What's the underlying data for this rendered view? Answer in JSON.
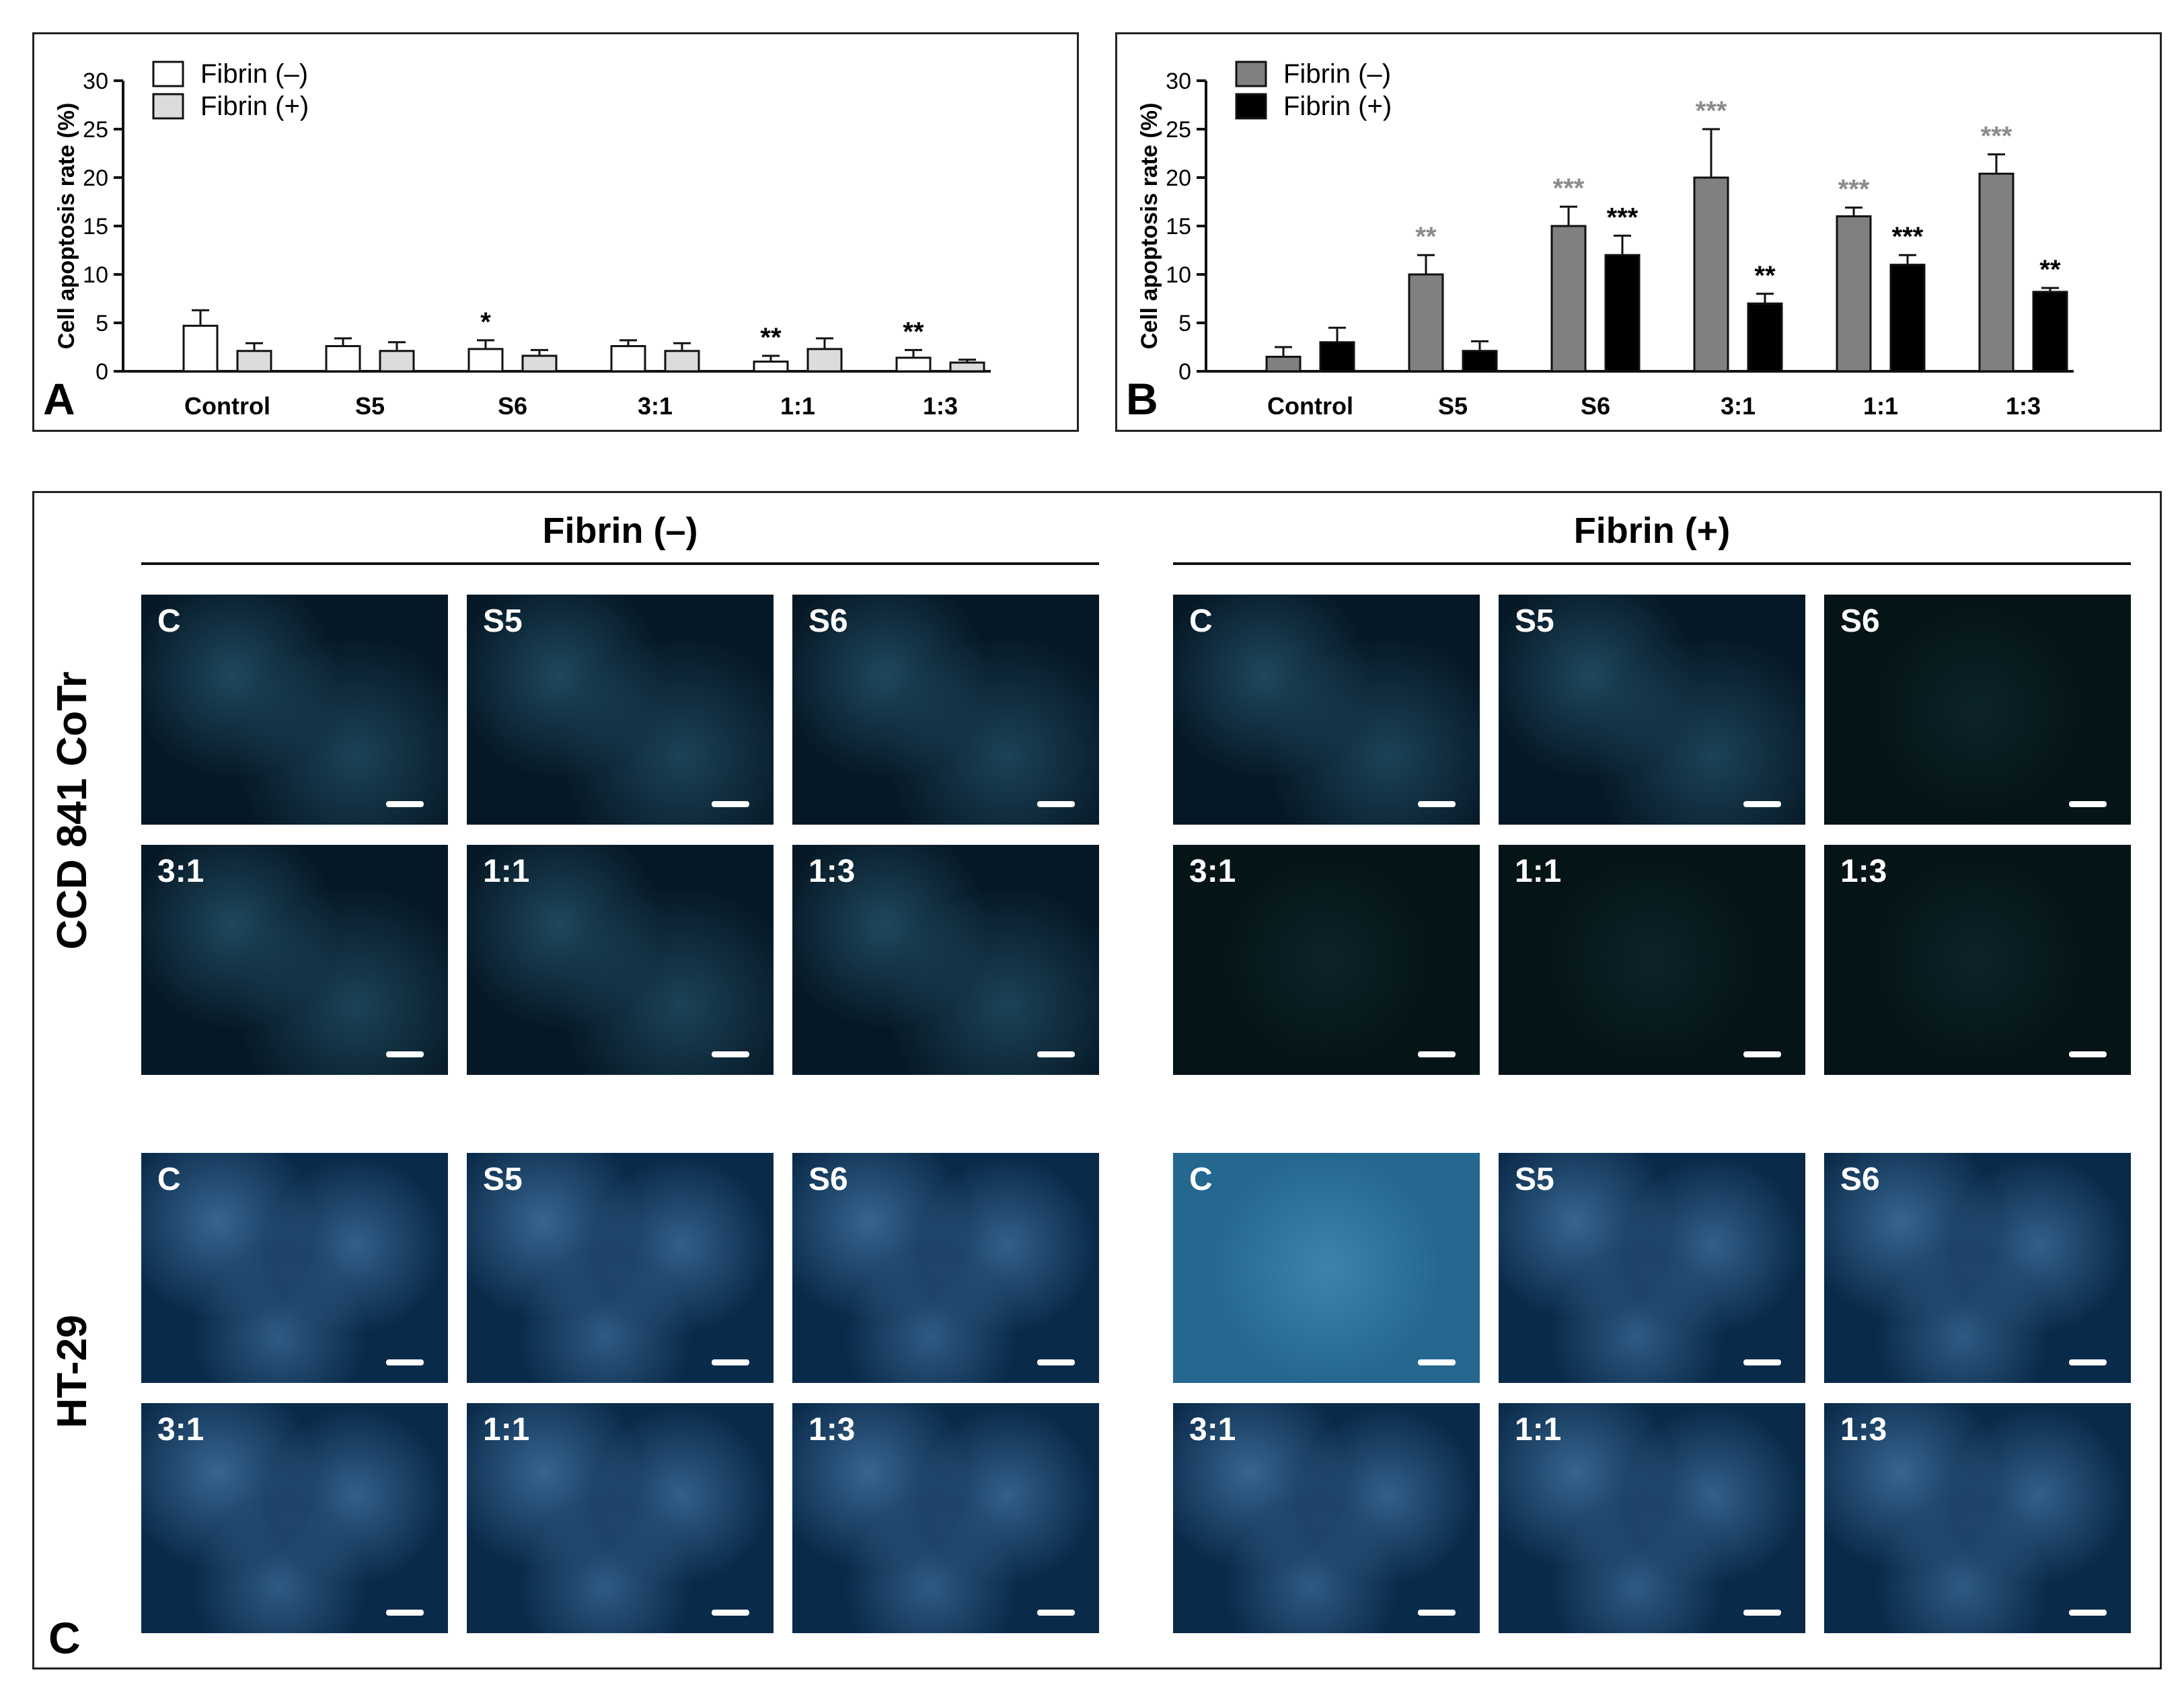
{
  "chart_data": [
    {
      "type": "bar",
      "panel": "A",
      "ylabel": "Cell apoptosis rate (%)",
      "ylim": [
        0,
        30
      ],
      "yticks": [
        0,
        5,
        10,
        15,
        20,
        25,
        30
      ],
      "categories": [
        "Control",
        "S5",
        "S6",
        "3:1",
        "1:1",
        "1:3"
      ],
      "series": [
        {
          "name": "Fibrin (–)",
          "color": "#ffffff",
          "values": [
            4.7,
            2.6,
            2.3,
            2.6,
            1.0,
            1.4
          ],
          "errors": [
            1.6,
            0.8,
            0.9,
            0.6,
            0.6,
            0.8
          ]
        },
        {
          "name": "Fibrin (+)",
          "color": "#dcdcdc",
          "values": [
            2.1,
            2.1,
            1.6,
            2.1,
            2.3,
            0.9
          ],
          "errors": [
            0.8,
            0.9,
            0.6,
            0.8,
            1.1,
            0.3
          ]
        }
      ],
      "annotations": [
        {
          "category": "S6",
          "series": 0,
          "text": "*",
          "color": "#000000"
        },
        {
          "category": "1:1",
          "series": 0,
          "text": "**",
          "color": "#000000"
        },
        {
          "category": "1:3",
          "series": 0,
          "text": "**",
          "color": "#000000"
        }
      ]
    },
    {
      "type": "bar",
      "panel": "B",
      "ylabel": "Cell apoptosis rate (%)",
      "ylim": [
        0,
        30
      ],
      "yticks": [
        0,
        5,
        10,
        15,
        20,
        25,
        30
      ],
      "categories": [
        "Control",
        "S5",
        "S6",
        "3:1",
        "1:1",
        "1:3"
      ],
      "series": [
        {
          "name": "Fibrin (–)",
          "color": "#808080",
          "values": [
            1.5,
            10.0,
            15.0,
            20.0,
            16.0,
            20.4
          ],
          "errors": [
            1.0,
            2.0,
            2.0,
            5.0,
            0.9,
            2.0
          ]
        },
        {
          "name": "Fibrin (+)",
          "color": "#000000",
          "values": [
            3.0,
            2.1,
            12.0,
            7.0,
            11.0,
            8.2
          ],
          "errors": [
            1.5,
            1.0,
            2.0,
            1.0,
            1.0,
            0.4
          ]
        }
      ],
      "annotations": [
        {
          "category": "S5",
          "series": 0,
          "text": "**",
          "color": "#8c8c8c"
        },
        {
          "category": "S6",
          "series": 0,
          "text": "***",
          "color": "#8c8c8c"
        },
        {
          "category": "S6",
          "series": 1,
          "text": "***",
          "color": "#000000"
        },
        {
          "category": "3:1",
          "series": 0,
          "text": "***",
          "color": "#8c8c8c"
        },
        {
          "category": "3:1",
          "series": 1,
          "text": "**",
          "color": "#000000"
        },
        {
          "category": "1:1",
          "series": 0,
          "text": "***",
          "color": "#8c8c8c"
        },
        {
          "category": "1:1",
          "series": 1,
          "text": "***",
          "color": "#000000"
        },
        {
          "category": "1:3",
          "series": 0,
          "text": "***",
          "color": "#8c8c8c"
        },
        {
          "category": "1:3",
          "series": 1,
          "text": "**",
          "color": "#000000"
        }
      ]
    }
  ],
  "panel_c": {
    "letter": "C",
    "column_headers": [
      "Fibrin (–)",
      "Fibrin (+)"
    ],
    "row_labels": [
      "CCD 841 CoTr",
      "HT-29"
    ],
    "image_labels": [
      "C",
      "S5",
      "S6",
      "3:1",
      "1:1",
      "1:3"
    ]
  }
}
